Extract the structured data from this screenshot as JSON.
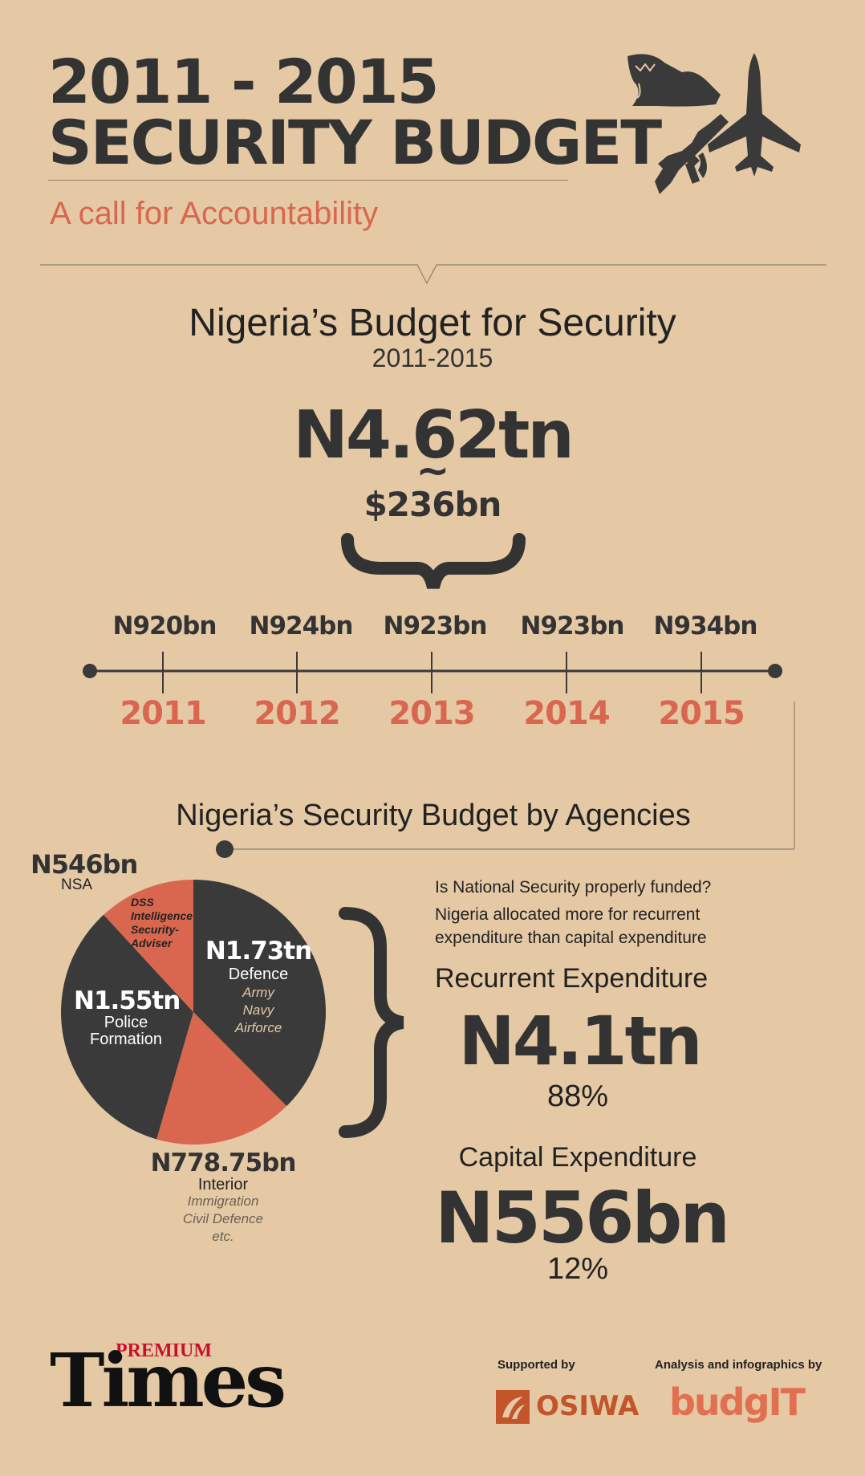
{
  "header": {
    "title_line1": "2011 - 2015",
    "title_line2": "SECURITY BUDGET",
    "subtitle": "A call for Accountability"
  },
  "overview": {
    "title": "Nigeria’s Budget for Security",
    "period": "2011-2015",
    "total": "N4.62tn",
    "approx": "~",
    "total_usd": "$236bn"
  },
  "timeline": [
    {
      "year": "2011",
      "amount": "N920bn"
    },
    {
      "year": "2012",
      "amount": "N924bn"
    },
    {
      "year": "2013",
      "amount": "N923bn"
    },
    {
      "year": "2014",
      "amount": "N923bn"
    },
    {
      "year": "2015",
      "amount": "N934bn"
    }
  ],
  "agencies": {
    "title": "Nigeria’s Security Budget by Agencies",
    "nsa": {
      "amount": "N546bn",
      "name": "NSA",
      "detail_1": "DSS",
      "detail_2": "Intelligence",
      "detail_3": "Security-",
      "detail_4": "Adviser"
    },
    "defence": {
      "amount": "N1.73tn",
      "name": "Defence",
      "detail_1": "Army",
      "detail_2": "Navy",
      "detail_3": "Airforce"
    },
    "police": {
      "amount": "N1.55tn",
      "name_1": "Police",
      "name_2": "Formation"
    },
    "interior": {
      "amount": "N778.75bn",
      "name": "Interior",
      "detail_1": "Immigration",
      "detail_2": "Civil Defence",
      "detail_3": "etc."
    }
  },
  "chart_data": {
    "type": "pie",
    "categories": [
      "Defence",
      "Interior",
      "Police Formation",
      "NSA"
    ],
    "values": [
      1730,
      778.75,
      1550,
      546
    ],
    "unit": "N bn",
    "colors": [
      "#3a3a3a",
      "#d9674f",
      "#3a3a3a",
      "#d9674f"
    ]
  },
  "funding": {
    "question": "Is National Security properly funded?",
    "statement_1": "Nigeria allocated more for recurrent",
    "statement_2": "expenditure than capital expenditure",
    "recurrent_label": "Recurrent Expenditure",
    "recurrent_amount": "N4.1tn",
    "recurrent_pct": "88%",
    "capital_label": "Capital Expenditure",
    "capital_amount": "N556bn",
    "capital_pct": "12%"
  },
  "footer": {
    "logo_small": "PREMIUM",
    "logo_big": "Times",
    "supported_by": "Supported by",
    "sponsor": "OSIWA",
    "analysis_by": "Analysis and infographics by",
    "analyst": "budgIT"
  },
  "colors": {
    "background": "#e5c9a5",
    "dark": "#3a3a3a",
    "accent": "#d9674f",
    "brand_red": "#c8102e"
  },
  "icons": [
    "shark-boat-icon",
    "rifle-icon",
    "fighter-jet-icon"
  ]
}
